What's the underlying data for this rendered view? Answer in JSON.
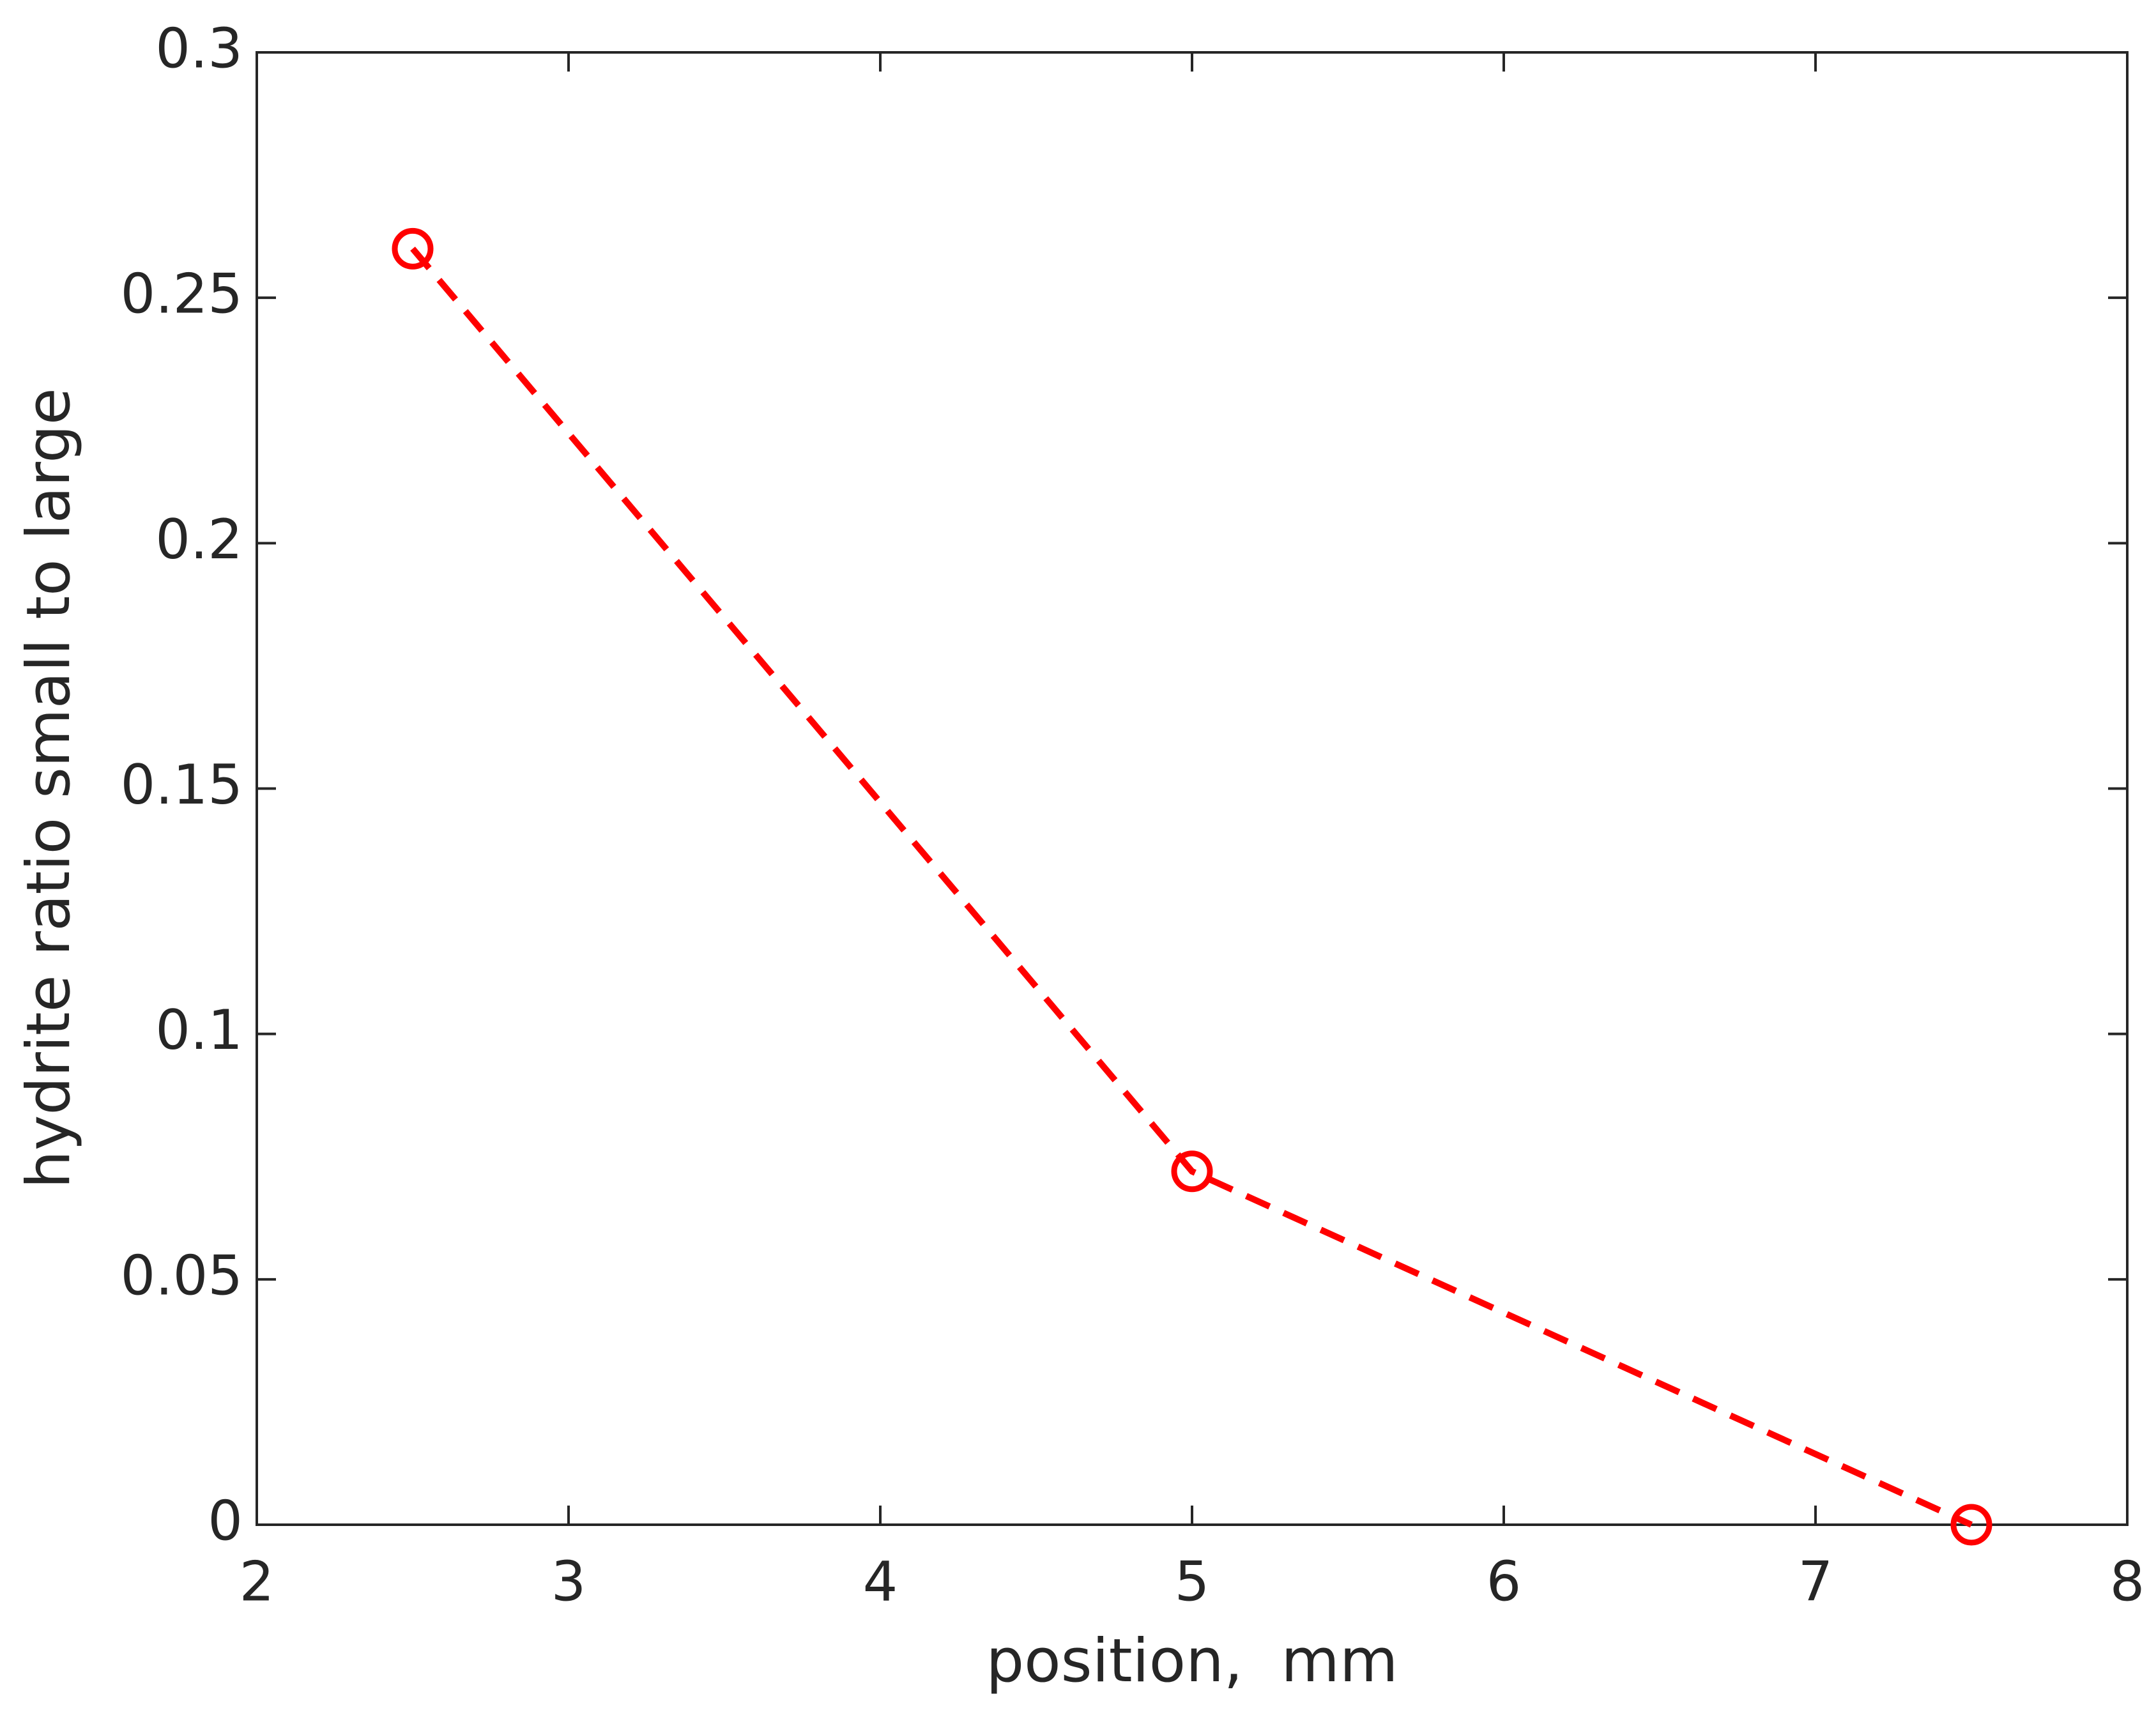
{
  "chart_data": {
    "type": "line",
    "x_label": "position,  mm",
    "y_label": "hydrite ratio small to large",
    "x": [
      2.5,
      5,
      7.5
    ],
    "series": [
      {
        "name": "hydrite ratio",
        "color": "#ff0000",
        "values": [
          0.26,
          0.072,
          0
        ]
      }
    ],
    "xlim": [
      2,
      8
    ],
    "xticks": [
      2,
      3,
      4,
      5,
      6,
      7,
      8
    ],
    "ylim": [
      0,
      0.3
    ],
    "yticks": [
      0,
      0.05,
      0.1,
      0.15,
      0.2,
      0.25,
      0.3
    ],
    "grid": false
  }
}
